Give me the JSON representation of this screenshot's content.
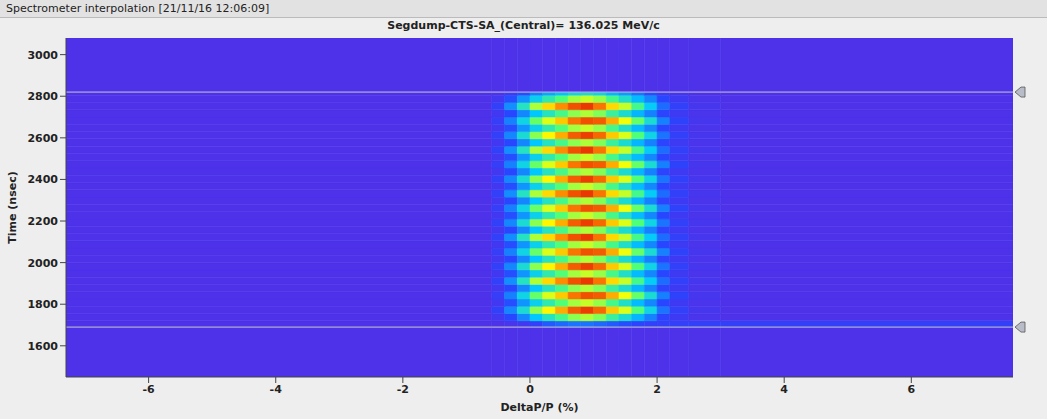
{
  "window_title": "Spectrometer interpolation [21/11/16 12:06:09]",
  "chart_data": {
    "type": "heatmap",
    "title": "Segdump-CTS-SA_(Central)= 136.025 MeV/c",
    "x_label": "DeltaP/P (%)",
    "y_label": "Time (nsec)",
    "xlim": [
      -7.3,
      7.6
    ],
    "xticks": [
      -6,
      -4,
      -2,
      0,
      2,
      4,
      6
    ],
    "ylim": [
      1450,
      3080
    ],
    "yticks": [
      1600,
      1800,
      2000,
      2200,
      2400,
      2600,
      2800,
      3000
    ],
    "grid": false,
    "cursors": [
      1690,
      2820
    ],
    "color_range": [
      0,
      100
    ],
    "cells": {
      "x_edges": [
        -7.3,
        -0.6,
        -0.4,
        -0.2,
        0,
        0.2,
        0.4,
        0.6,
        0.8,
        1.0,
        1.2,
        1.4,
        1.6,
        1.8,
        2.0,
        2.2,
        2.5,
        3.0,
        7.6
      ],
      "y_edges": [
        1450,
        1690,
        1720,
        1755,
        1790,
        1825,
        1860,
        1895,
        1930,
        1965,
        2000,
        2035,
        2070,
        2105,
        2140,
        2175,
        2210,
        2245,
        2280,
        2315,
        2350,
        2385,
        2420,
        2455,
        2490,
        2525,
        2560,
        2595,
        2630,
        2665,
        2700,
        2735,
        2770,
        2805,
        2820,
        3080
      ],
      "values": [
        [
          5,
          5,
          5,
          5,
          5,
          5,
          5,
          5,
          5,
          5,
          5,
          5,
          5,
          5,
          5,
          5,
          5,
          5
        ],
        [
          5,
          5,
          6,
          8,
          12,
          18,
          20,
          22,
          22,
          20,
          18,
          16,
          14,
          12,
          12,
          12,
          12,
          12
        ],
        [
          5,
          8,
          15,
          25,
          35,
          42,
          48,
          55,
          58,
          54,
          46,
          40,
          32,
          24,
          14,
          9,
          6,
          5
        ],
        [
          5,
          12,
          25,
          40,
          55,
          66,
          76,
          88,
          93,
          86,
          72,
          62,
          50,
          38,
          22,
          12,
          7,
          5
        ],
        [
          5,
          8,
          16,
          27,
          37,
          44,
          50,
          57,
          60,
          56,
          48,
          41,
          33,
          25,
          15,
          9,
          6,
          5
        ],
        [
          5,
          11,
          24,
          38,
          52,
          62,
          72,
          84,
          90,
          88,
          76,
          64,
          52,
          40,
          24,
          13,
          7,
          5
        ],
        [
          5,
          8,
          15,
          25,
          35,
          42,
          48,
          55,
          58,
          54,
          46,
          40,
          32,
          24,
          14,
          9,
          6,
          5
        ],
        [
          5,
          12,
          26,
          42,
          58,
          70,
          80,
          90,
          94,
          84,
          70,
          60,
          48,
          36,
          21,
          12,
          7,
          5
        ],
        [
          5,
          8,
          16,
          27,
          37,
          44,
          50,
          57,
          60,
          56,
          48,
          41,
          33,
          25,
          15,
          9,
          6,
          5
        ],
        [
          5,
          12,
          25,
          40,
          55,
          66,
          76,
          88,
          93,
          86,
          72,
          62,
          50,
          38,
          22,
          12,
          7,
          5
        ],
        [
          5,
          8,
          15,
          25,
          35,
          42,
          48,
          55,
          58,
          54,
          46,
          40,
          32,
          24,
          14,
          9,
          6,
          5
        ],
        [
          5,
          11,
          24,
          38,
          52,
          62,
          72,
          84,
          90,
          88,
          76,
          64,
          52,
          40,
          24,
          13,
          7,
          5
        ],
        [
          5,
          8,
          16,
          27,
          37,
          44,
          50,
          57,
          60,
          56,
          48,
          41,
          33,
          25,
          15,
          9,
          6,
          5
        ],
        [
          5,
          12,
          26,
          42,
          58,
          70,
          80,
          90,
          94,
          84,
          70,
          60,
          48,
          36,
          21,
          12,
          7,
          5
        ],
        [
          5,
          8,
          15,
          25,
          35,
          42,
          48,
          55,
          58,
          54,
          46,
          40,
          32,
          24,
          14,
          9,
          6,
          5
        ],
        [
          5,
          12,
          25,
          40,
          55,
          66,
          76,
          88,
          93,
          86,
          72,
          62,
          50,
          38,
          22,
          12,
          7,
          5
        ],
        [
          5,
          8,
          16,
          27,
          37,
          44,
          50,
          57,
          60,
          56,
          48,
          41,
          33,
          25,
          15,
          9,
          6,
          5
        ],
        [
          5,
          11,
          24,
          38,
          52,
          62,
          72,
          84,
          90,
          88,
          76,
          64,
          52,
          40,
          24,
          13,
          7,
          5
        ],
        [
          5,
          8,
          15,
          25,
          35,
          42,
          48,
          55,
          58,
          54,
          46,
          40,
          32,
          24,
          14,
          9,
          6,
          5
        ],
        [
          5,
          12,
          26,
          42,
          58,
          70,
          80,
          90,
          94,
          84,
          70,
          60,
          48,
          36,
          21,
          12,
          7,
          5
        ],
        [
          5,
          8,
          16,
          27,
          37,
          44,
          50,
          57,
          60,
          56,
          48,
          41,
          33,
          25,
          15,
          9,
          6,
          5
        ],
        [
          5,
          12,
          25,
          40,
          55,
          66,
          76,
          88,
          93,
          86,
          72,
          62,
          50,
          38,
          22,
          12,
          7,
          5
        ],
        [
          5,
          8,
          15,
          25,
          35,
          42,
          48,
          55,
          58,
          54,
          46,
          40,
          32,
          24,
          14,
          9,
          6,
          5
        ],
        [
          5,
          11,
          24,
          38,
          52,
          62,
          72,
          84,
          90,
          88,
          76,
          64,
          52,
          40,
          24,
          13,
          7,
          5
        ],
        [
          5,
          8,
          16,
          27,
          37,
          44,
          50,
          57,
          60,
          56,
          48,
          41,
          33,
          25,
          15,
          9,
          6,
          5
        ],
        [
          5,
          12,
          26,
          42,
          58,
          70,
          80,
          90,
          94,
          84,
          70,
          60,
          48,
          36,
          21,
          12,
          7,
          5
        ],
        [
          5,
          8,
          15,
          25,
          35,
          42,
          48,
          55,
          58,
          54,
          46,
          40,
          32,
          24,
          14,
          9,
          6,
          5
        ],
        [
          5,
          12,
          25,
          40,
          55,
          66,
          76,
          88,
          93,
          86,
          72,
          62,
          50,
          38,
          22,
          12,
          7,
          5
        ],
        [
          5,
          8,
          16,
          27,
          37,
          44,
          50,
          57,
          60,
          56,
          48,
          41,
          33,
          25,
          15,
          9,
          6,
          5
        ],
        [
          5,
          11,
          24,
          38,
          52,
          62,
          72,
          84,
          90,
          88,
          76,
          64,
          52,
          40,
          24,
          13,
          7,
          5
        ],
        [
          5,
          8,
          15,
          25,
          35,
          42,
          48,
          55,
          58,
          54,
          46,
          40,
          32,
          24,
          14,
          9,
          6,
          5
        ],
        [
          5,
          12,
          26,
          42,
          58,
          70,
          80,
          90,
          94,
          84,
          70,
          60,
          48,
          36,
          21,
          12,
          7,
          5
        ],
        [
          5,
          8,
          16,
          27,
          37,
          44,
          50,
          57,
          60,
          56,
          48,
          41,
          33,
          25,
          15,
          9,
          6,
          5
        ],
        [
          5,
          6,
          10,
          16,
          24,
          30,
          34,
          38,
          40,
          38,
          32,
          28,
          22,
          16,
          10,
          7,
          5,
          5
        ],
        [
          5,
          5,
          5,
          5,
          5,
          5,
          5,
          5,
          5,
          5,
          5,
          5,
          5,
          5,
          5,
          5,
          5,
          5
        ]
      ]
    }
  }
}
